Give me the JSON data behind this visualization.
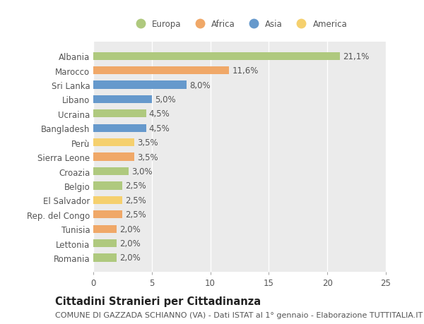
{
  "categories": [
    "Albania",
    "Marocco",
    "Sri Lanka",
    "Libano",
    "Ucraina",
    "Bangladesh",
    "Perù",
    "Sierra Leone",
    "Croazia",
    "Belgio",
    "El Salvador",
    "Rep. del Congo",
    "Tunisia",
    "Lettonia",
    "Romania"
  ],
  "values": [
    21.1,
    11.6,
    8.0,
    5.0,
    4.5,
    4.5,
    3.5,
    3.5,
    3.0,
    2.5,
    2.5,
    2.5,
    2.0,
    2.0,
    2.0
  ],
  "labels": [
    "21,1%",
    "11,6%",
    "8,0%",
    "5,0%",
    "4,5%",
    "4,5%",
    "3,5%",
    "3,5%",
    "3,0%",
    "2,5%",
    "2,5%",
    "2,5%",
    "2,0%",
    "2,0%",
    "2,0%"
  ],
  "colors": [
    "#afc97e",
    "#f0a868",
    "#6699cc",
    "#6699cc",
    "#afc97e",
    "#6699cc",
    "#f5d06e",
    "#f0a868",
    "#afc97e",
    "#afc97e",
    "#f5d06e",
    "#f0a868",
    "#f0a868",
    "#afc97e",
    "#afc97e"
  ],
  "legend_labels": [
    "Europa",
    "Africa",
    "Asia",
    "America"
  ],
  "legend_colors": [
    "#afc97e",
    "#f0a868",
    "#6699cc",
    "#f5d06e"
  ],
  "xlim": [
    0,
    25
  ],
  "xticks": [
    0,
    5,
    10,
    15,
    20,
    25
  ],
  "background_color": "#ffffff",
  "plot_bg_color": "#ebebeb",
  "grid_color": "#ffffff",
  "title": "Cittadini Stranieri per Cittadinanza",
  "subtitle": "COMUNE DI GAZZADA SCHIANNO (VA) - Dati ISTAT al 1° gennaio - Elaborazione TUTTITALIA.IT",
  "bar_height": 0.55,
  "label_fontsize": 8.5,
  "tick_fontsize": 8.5,
  "title_fontsize": 10.5,
  "subtitle_fontsize": 8.0,
  "text_color": "#555555",
  "title_color": "#222222"
}
